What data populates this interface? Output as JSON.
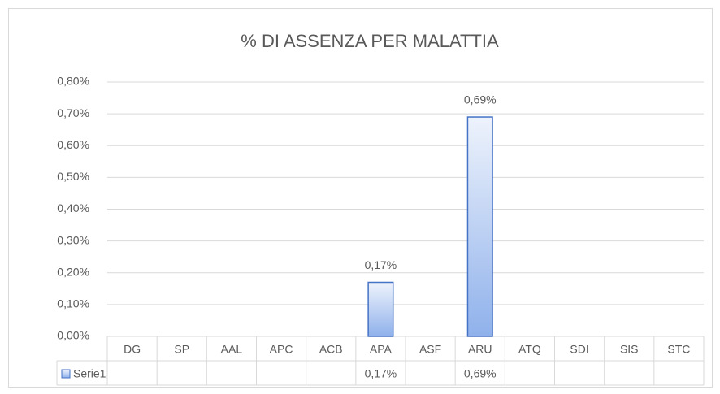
{
  "chart_data": {
    "type": "bar",
    "title": "% DI ASSENZA PER MALATTIA",
    "categories": [
      "DG",
      "SP",
      "AAL",
      "APC",
      "ACB",
      "APA",
      "ASF",
      "ARU",
      "ATQ",
      "SDI",
      "SIS",
      "STC"
    ],
    "series": [
      {
        "name": "Serie1",
        "color": "#4472c4",
        "values": [
          null,
          null,
          null,
          null,
          null,
          0.17,
          null,
          0.69,
          null,
          null,
          null,
          null
        ],
        "value_labels": [
          null,
          null,
          null,
          null,
          null,
          "0,17%",
          null,
          "0,69%",
          null,
          null,
          null,
          null
        ]
      }
    ],
    "ylim": [
      0,
      0.8
    ],
    "yticks": [
      {
        "value": 0,
        "label": "0,00%"
      },
      {
        "value": 0.1,
        "label": "0,10%"
      },
      {
        "value": 0.2,
        "label": "0,20%"
      },
      {
        "value": 0.3,
        "label": "0,30%"
      },
      {
        "value": 0.4,
        "label": "0,40%"
      },
      {
        "value": 0.5,
        "label": "0,50%"
      },
      {
        "value": 0.6,
        "label": "0,60%"
      },
      {
        "value": 0.7,
        "label": "0,70%"
      },
      {
        "value": 0.8,
        "label": "0,80%"
      }
    ],
    "grid": true,
    "data_table": true
  }
}
